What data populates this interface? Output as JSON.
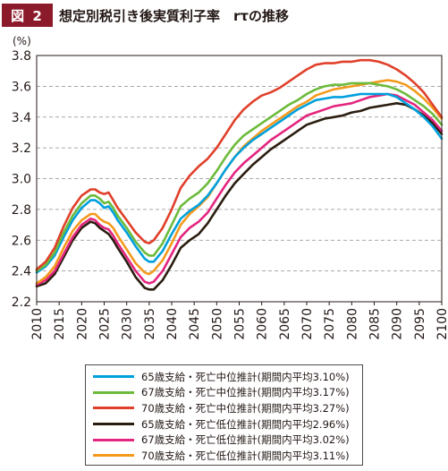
{
  "figure": {
    "badge": "図 2",
    "title": "想定別税引き後実質利子率　rτの推移"
  },
  "chart_data": {
    "type": "line",
    "title": "想定別税引き後実質利子率　rτの推移",
    "ylabel": "(%)",
    "xlabel": "",
    "xlim": [
      2010,
      2100
    ],
    "ylim": [
      2.2,
      3.8
    ],
    "xticks": [
      "2010",
      "2015",
      "2020",
      "2025",
      "2030",
      "2035",
      "2040",
      "2045",
      "2050",
      "2055",
      "2060",
      "2065",
      "2070",
      "2075",
      "2080",
      "2085",
      "2090",
      "2095",
      "2100"
    ],
    "yticks": [
      "2.2",
      "2.4",
      "2.6",
      "2.8",
      "3.0",
      "3.2",
      "3.4",
      "3.6",
      "3.8"
    ],
    "grid": "horizontal-dashed",
    "legend_position": "bottom",
    "x": [
      2010,
      2012,
      2014,
      2016,
      2018,
      2020,
      2022,
      2023,
      2024,
      2025,
      2026,
      2027,
      2028,
      2030,
      2032,
      2034,
      2035,
      2036,
      2038,
      2040,
      2042,
      2044,
      2046,
      2048,
      2050,
      2052,
      2054,
      2056,
      2058,
      2060,
      2062,
      2064,
      2066,
      2068,
      2070,
      2072,
      2074,
      2076,
      2078,
      2080,
      2082,
      2084,
      2086,
      2088,
      2090,
      2092,
      2094,
      2096,
      2098,
      2100
    ],
    "series": [
      {
        "name": "65歳支給・死亡中位推計(期間内平均3.10%)",
        "color": "#00a0dc",
        "values": [
          2.39,
          2.43,
          2.5,
          2.62,
          2.73,
          2.81,
          2.86,
          2.86,
          2.84,
          2.81,
          2.82,
          2.78,
          2.73,
          2.65,
          2.56,
          2.48,
          2.46,
          2.46,
          2.53,
          2.64,
          2.74,
          2.79,
          2.83,
          2.89,
          2.97,
          3.06,
          3.14,
          3.2,
          3.25,
          3.29,
          3.33,
          3.37,
          3.41,
          3.45,
          3.48,
          3.51,
          3.52,
          3.53,
          3.53,
          3.54,
          3.55,
          3.55,
          3.55,
          3.55,
          3.53,
          3.49,
          3.45,
          3.4,
          3.34,
          3.26
        ]
      },
      {
        "name": "67歳支給・死亡中位推計(期間内平均3.17%)",
        "color": "#6cbb3c",
        "values": [
          2.4,
          2.44,
          2.52,
          2.65,
          2.76,
          2.84,
          2.89,
          2.89,
          2.87,
          2.84,
          2.85,
          2.81,
          2.76,
          2.68,
          2.59,
          2.52,
          2.5,
          2.5,
          2.58,
          2.7,
          2.82,
          2.87,
          2.91,
          2.97,
          3.05,
          3.14,
          3.22,
          3.28,
          3.32,
          3.36,
          3.4,
          3.44,
          3.48,
          3.51,
          3.55,
          3.58,
          3.6,
          3.61,
          3.61,
          3.62,
          3.62,
          3.62,
          3.61,
          3.6,
          3.58,
          3.55,
          3.51,
          3.47,
          3.42,
          3.35
        ]
      },
      {
        "name": "70歳支給・死亡中位推計(期間内平均3.27%)",
        "color": "#e0402a",
        "values": [
          2.41,
          2.46,
          2.55,
          2.69,
          2.81,
          2.89,
          2.93,
          2.93,
          2.91,
          2.9,
          2.91,
          2.86,
          2.81,
          2.73,
          2.65,
          2.59,
          2.58,
          2.6,
          2.68,
          2.8,
          2.94,
          3.02,
          3.08,
          3.13,
          3.2,
          3.29,
          3.38,
          3.45,
          3.5,
          3.54,
          3.56,
          3.59,
          3.63,
          3.67,
          3.71,
          3.74,
          3.75,
          3.75,
          3.76,
          3.76,
          3.77,
          3.77,
          3.76,
          3.74,
          3.71,
          3.67,
          3.62,
          3.56,
          3.48,
          3.4
        ]
      },
      {
        "name": "65歳支給・死亡低位推計(期間内平均2.96%)",
        "color": "#2b1d10",
        "values": [
          2.3,
          2.32,
          2.38,
          2.49,
          2.6,
          2.68,
          2.72,
          2.71,
          2.68,
          2.66,
          2.64,
          2.6,
          2.55,
          2.46,
          2.36,
          2.29,
          2.28,
          2.28,
          2.34,
          2.44,
          2.55,
          2.6,
          2.64,
          2.71,
          2.8,
          2.89,
          2.97,
          3.03,
          3.09,
          3.14,
          3.19,
          3.23,
          3.27,
          3.31,
          3.35,
          3.37,
          3.39,
          3.4,
          3.41,
          3.43,
          3.44,
          3.46,
          3.47,
          3.48,
          3.49,
          3.48,
          3.45,
          3.41,
          3.36,
          3.29
        ]
      },
      {
        "name": "67歳支給・死亡低位推計(期間内平均3.02%)",
        "color": "#e3257f",
        "values": [
          2.31,
          2.34,
          2.4,
          2.51,
          2.62,
          2.7,
          2.74,
          2.73,
          2.7,
          2.68,
          2.67,
          2.63,
          2.58,
          2.49,
          2.4,
          2.33,
          2.32,
          2.33,
          2.4,
          2.51,
          2.62,
          2.68,
          2.72,
          2.78,
          2.87,
          2.96,
          3.04,
          3.1,
          3.15,
          3.2,
          3.25,
          3.29,
          3.33,
          3.37,
          3.41,
          3.43,
          3.45,
          3.47,
          3.48,
          3.49,
          3.51,
          3.53,
          3.54,
          3.55,
          3.54,
          3.51,
          3.48,
          3.43,
          3.38,
          3.31
        ]
      },
      {
        "name": "70歳支給・死亡低位推計(期間内平均3.11%)",
        "color": "#f39a1d",
        "values": [
          2.32,
          2.36,
          2.43,
          2.55,
          2.66,
          2.73,
          2.77,
          2.77,
          2.74,
          2.72,
          2.71,
          2.68,
          2.63,
          2.54,
          2.45,
          2.39,
          2.38,
          2.4,
          2.47,
          2.58,
          2.7,
          2.77,
          2.82,
          2.88,
          2.97,
          3.06,
          3.14,
          3.21,
          3.26,
          3.31,
          3.35,
          3.39,
          3.43,
          3.47,
          3.5,
          3.54,
          3.56,
          3.58,
          3.59,
          3.6,
          3.61,
          3.62,
          3.63,
          3.64,
          3.63,
          3.61,
          3.57,
          3.52,
          3.46,
          3.39
        ]
      }
    ]
  }
}
